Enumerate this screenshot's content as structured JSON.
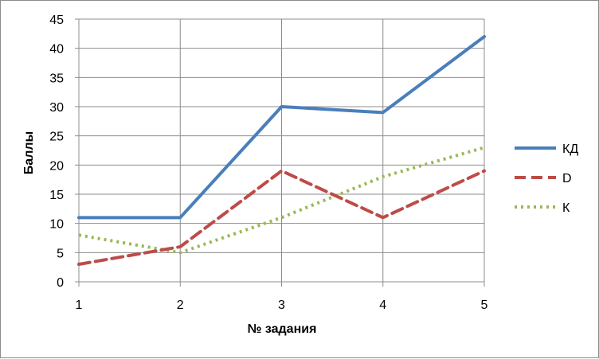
{
  "chart_data": {
    "type": "line",
    "title": "",
    "xlabel": "№ задания",
    "ylabel": "Баллы",
    "x": [
      1,
      2,
      3,
      4,
      5
    ],
    "ylim": [
      0,
      45
    ],
    "yticks": [
      0,
      5,
      10,
      15,
      20,
      25,
      30,
      35,
      40,
      45
    ],
    "grid": true,
    "legend_position": "right",
    "series": [
      {
        "name": "КД",
        "values": [
          11,
          11,
          30,
          29,
          42
        ],
        "color": "#4a7ebb",
        "style": "solid"
      },
      {
        "name": "D",
        "values": [
          3,
          6,
          19,
          11,
          19
        ],
        "color": "#be4b48",
        "style": "dashed"
      },
      {
        "name": "К",
        "values": [
          8,
          5,
          11,
          18,
          23
        ],
        "color": "#98b954",
        "style": "dotted"
      }
    ]
  }
}
